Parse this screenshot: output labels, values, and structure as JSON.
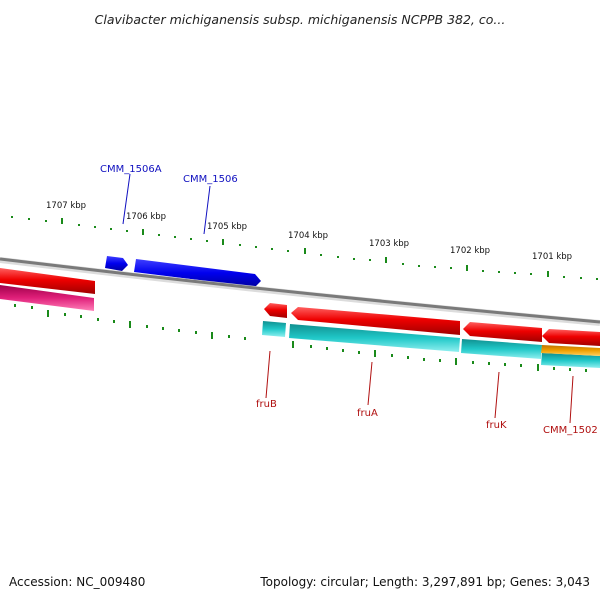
{
  "title": "Clavibacter michiganensis subsp. michiganensis NCPPB 382, co...",
  "accession": "Accession: NC_009480",
  "topology": "Topology: circular; Length: 3,297,891 bp; Genes: 3,043",
  "scale_labels": [
    "1707 kbp",
    "1706 kbp",
    "1705 kbp",
    "1704 kbp",
    "1703 kbp",
    "1702 kbp",
    "1701 kbp"
  ],
  "genes_top": [
    "CMM_1506A",
    "CMM_1506"
  ],
  "genes_bottom": [
    "fruB",
    "fruA",
    "fruK",
    "CMM_1502"
  ],
  "colors": {
    "genome_line": "#808080",
    "blue_gene": "#0000ee",
    "red_gene": "#ee0000",
    "magenta_gene": "#e0207a",
    "cyan_gene": "#20c8c8",
    "orange_gene": "#f0a000",
    "ticks": "#1a8a1a",
    "label_blue": "#1010c0",
    "label_red": "#b01010"
  }
}
